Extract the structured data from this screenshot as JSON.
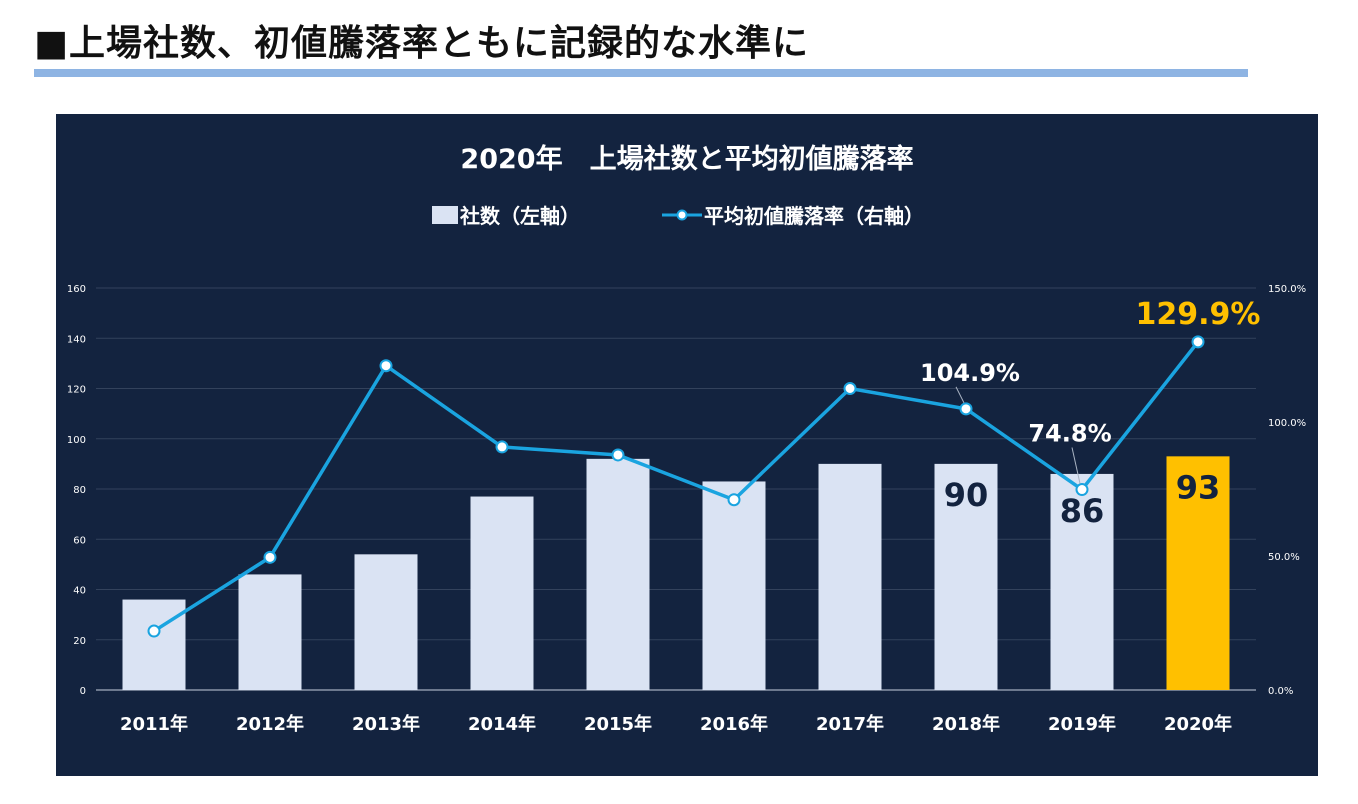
{
  "heading": "■上場社数、初値騰落率ともに記録的な水準に",
  "colors": {
    "panel_bg": "#13233f",
    "bar": "#dae3f3",
    "bar_highlight": "#ffc000",
    "line": "#1aa4e0",
    "rule": "#8eb4e3",
    "annotation_highlight": "#ffc000"
  },
  "chart_data": {
    "type": "bar",
    "title": "2020年　上場社数と平均初値騰落率",
    "categories": [
      "2011年",
      "2012年",
      "2013年",
      "2014年",
      "2015年",
      "2016年",
      "2017年",
      "2018年",
      "2019年",
      "2020年"
    ],
    "series": [
      {
        "name": "社数（左軸）",
        "type": "bar",
        "axis": "left",
        "values": [
          36,
          46,
          54,
          77,
          92,
          83,
          90,
          90,
          86,
          93
        ]
      },
      {
        "name": "平均初値騰落率（右軸）",
        "type": "line",
        "axis": "right",
        "values": [
          22.0,
          49.5,
          121.0,
          90.7,
          87.7,
          71.0,
          112.5,
          104.9,
          74.8,
          129.9
        ]
      }
    ],
    "left_axis": {
      "min": 0,
      "max": 160,
      "ticks": [
        "0",
        "20",
        "40",
        "60",
        "80",
        "100",
        "120",
        "140",
        "160"
      ]
    },
    "right_axis": {
      "min": 0,
      "max": 150,
      "ticks": [
        "0.0%",
        "50.0%",
        "100.0%",
        "150.0%"
      ]
    },
    "bar_labels": [
      {
        "index": 7,
        "text": "90"
      },
      {
        "index": 8,
        "text": "86"
      },
      {
        "index": 9,
        "text": "93"
      }
    ],
    "line_labels": [
      {
        "index": 7,
        "text": "104.9%"
      },
      {
        "index": 8,
        "text": "74.8%"
      },
      {
        "index": 9,
        "text": "129.9%"
      }
    ],
    "legend_position": "top-center",
    "grid": true
  }
}
